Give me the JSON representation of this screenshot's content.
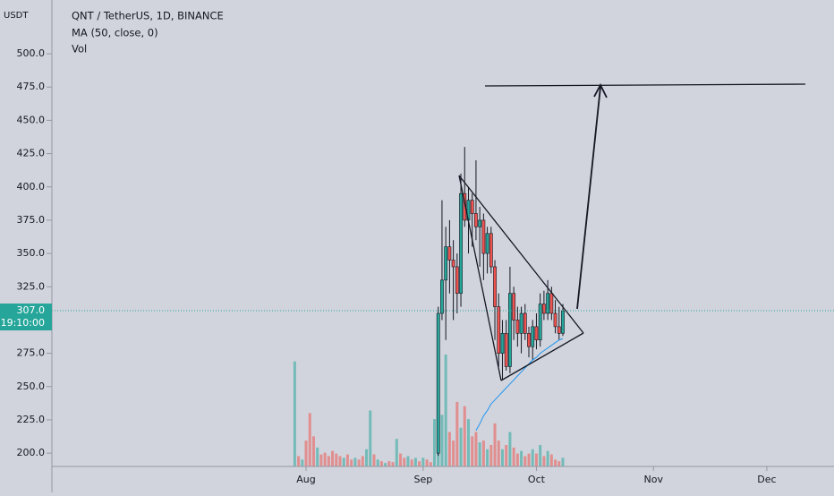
{
  "chart_data": {
    "type": "candlestick",
    "title": "QNT / TetherUS, 1D, BINANCE",
    "indicators": [
      "MA (50, close, 0)",
      "Vol"
    ],
    "y_unit": "USDT",
    "last_price": {
      "value": 307,
      "label": "307.0"
    },
    "countdown": "19:10:00",
    "up_color": "#26a69a",
    "down_color": "#ef5350",
    "ma_color": "#2196f3",
    "ylim": [
      190,
      540.4
    ],
    "yticks": [
      {
        "value": 200,
        "label": "200.0"
      },
      {
        "value": 225,
        "label": "225.0"
      },
      {
        "value": 250,
        "label": "250.0"
      },
      {
        "value": 275,
        "label": "275.0"
      },
      {
        "value": 300,
        "label": "300.0"
      },
      {
        "value": 325,
        "label": "325.0"
      },
      {
        "value": 350,
        "label": "350.0"
      },
      {
        "value": 375,
        "label": "375.0"
      },
      {
        "value": 400,
        "label": "400.0"
      },
      {
        "value": 425,
        "label": "425.0"
      },
      {
        "value": 450,
        "label": "450.0"
      },
      {
        "value": 475,
        "label": "475.0"
      },
      {
        "value": 500,
        "label": "500.0"
      }
    ],
    "xlim": [
      -67.3,
      139.8
    ],
    "xticks": [
      {
        "value": 0,
        "label": "Aug"
      },
      {
        "value": 31,
        "label": "Sep"
      },
      {
        "value": 61,
        "label": "Oct"
      },
      {
        "value": 92,
        "label": "Nov"
      },
      {
        "value": 122,
        "label": "Dec"
      }
    ],
    "candles": {
      "x": [
        35,
        36,
        37,
        38,
        39,
        40,
        41,
        42,
        43,
        44,
        45,
        46,
        47,
        48,
        49,
        50,
        51,
        52,
        53,
        54,
        55,
        56,
        57,
        58,
        59,
        60,
        61,
        62,
        63,
        64,
        65,
        66,
        67,
        68
      ],
      "open": [
        200,
        305,
        330,
        355,
        345,
        340,
        320,
        395,
        375,
        390,
        380,
        370,
        375,
        350,
        365,
        340,
        310,
        275,
        290,
        265,
        320,
        300,
        290,
        305,
        290,
        280,
        295,
        285,
        312,
        305,
        320,
        305,
        295,
        290
      ],
      "high": [
        310,
        390,
        370,
        375,
        360,
        350,
        410,
        430,
        400,
        395,
        420,
        385,
        380,
        370,
        370,
        345,
        320,
        300,
        300,
        340,
        325,
        310,
        310,
        312,
        295,
        300,
        305,
        320,
        322,
        330,
        325,
        315,
        310,
        312
      ],
      "low": [
        198,
        300,
        285,
        320,
        300,
        305,
        310,
        370,
        350,
        355,
        360,
        340,
        330,
        335,
        335,
        285,
        265,
        255,
        262,
        260,
        285,
        280,
        275,
        285,
        272,
        270,
        278,
        280,
        300,
        300,
        300,
        290,
        285,
        288
      ],
      "close": [
        305,
        330,
        355,
        345,
        340,
        320,
        395,
        375,
        390,
        380,
        370,
        375,
        350,
        365,
        340,
        310,
        275,
        290,
        265,
        320,
        300,
        290,
        305,
        290,
        280,
        295,
        285,
        312,
        305,
        320,
        305,
        295,
        290,
        307
      ]
    },
    "ma": {
      "x": [
        45,
        46,
        47,
        48,
        49,
        50,
        51,
        52,
        53,
        54,
        55,
        56,
        57,
        58,
        59,
        60,
        61,
        62,
        63,
        64,
        65,
        66,
        67,
        68
      ],
      "values": [
        217,
        222,
        228,
        232,
        237,
        240,
        243,
        246,
        249,
        252,
        255,
        258,
        261,
        264,
        267,
        270,
        272,
        275,
        277,
        279,
        281,
        283,
        285,
        286
      ]
    },
    "volume": {
      "x": [
        -3,
        -2,
        -1,
        0,
        1,
        2,
        3,
        4,
        5,
        6,
        7,
        8,
        9,
        10,
        11,
        12,
        13,
        14,
        15,
        16,
        17,
        18,
        19,
        20,
        21,
        22,
        23,
        24,
        25,
        26,
        27,
        28,
        29,
        30,
        31,
        32,
        33,
        34,
        35,
        36,
        37,
        38,
        39,
        40,
        41,
        42,
        43,
        44,
        45,
        46,
        47,
        48,
        49,
        50,
        51,
        52,
        53,
        54,
        55,
        56,
        57,
        58,
        59,
        60,
        61,
        62,
        63,
        64,
        65,
        66,
        67,
        68
      ],
      "values": [
        122,
        12,
        8,
        30,
        62,
        35,
        22,
        14,
        16,
        12,
        18,
        15,
        12,
        10,
        14,
        8,
        10,
        8,
        12,
        20,
        65,
        14,
        8,
        6,
        4,
        6,
        5,
        32,
        15,
        10,
        12,
        8,
        10,
        6,
        10,
        8,
        5,
        55,
        100,
        60,
        130,
        40,
        30,
        75,
        45,
        70,
        55,
        35,
        40,
        28,
        30,
        20,
        25,
        50,
        30,
        20,
        25,
        40,
        22,
        15,
        18,
        12,
        15,
        20,
        15,
        25,
        12,
        18,
        14,
        8,
        6,
        10
      ],
      "up": [
        1,
        0,
        1,
        0,
        0,
        0,
        1,
        0,
        0,
        0,
        0,
        0,
        0,
        1,
        0,
        0,
        1,
        0,
        0,
        1,
        1,
        0,
        1,
        0,
        1,
        0,
        0,
        1,
        0,
        0,
        1,
        0,
        1,
        0,
        1,
        0,
        0,
        1,
        1,
        1,
        1,
        0,
        0,
        0,
        1,
        0,
        1,
        0,
        0,
        1,
        0,
        1,
        0,
        0,
        0,
        1,
        0,
        1,
        0,
        0,
        1,
        0,
        0,
        1,
        0,
        1,
        0,
        1,
        0,
        0,
        0,
        1
      ]
    }
  }
}
